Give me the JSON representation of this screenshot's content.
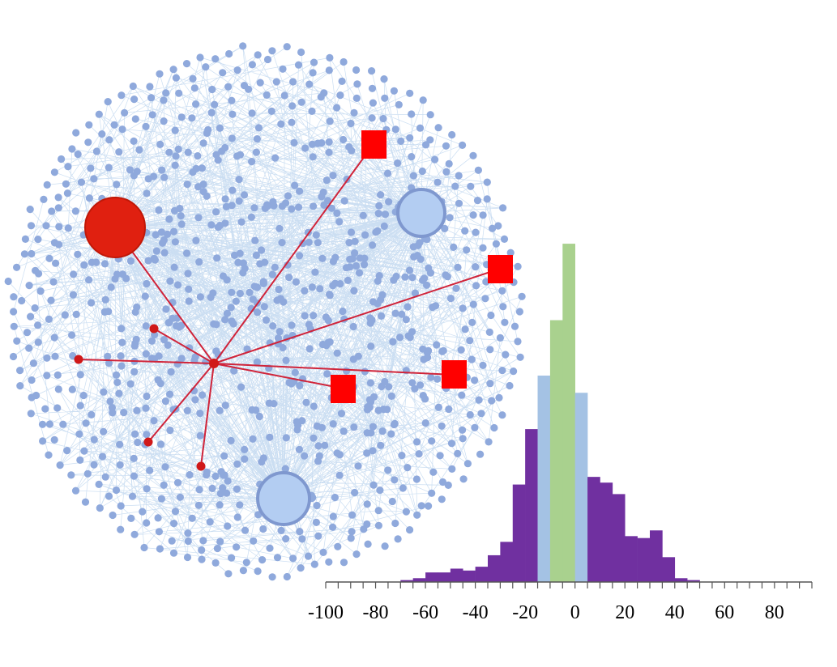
{
  "colors": {
    "background": "#ffffff",
    "network_node": "#8fa9dc",
    "network_edge": "#b9d3ee",
    "hub": "#b3cdf2",
    "hub_ring": "#7f98cf",
    "highlight": "#e02010",
    "tail_bar": "#7030a0",
    "mid_bar": "#a4c2e4",
    "center_bar": "#a9d18e",
    "axis": "#555555"
  },
  "network": {
    "description_nodes": {
      "center": "red-hub-node",
      "large_red": "large-red-node",
      "hubs": [
        "hub-node-upper-right",
        "hub-node-bottom"
      ],
      "squares": [
        "red-square-top",
        "red-square-right",
        "red-square-mid-right",
        "red-square-center"
      ],
      "small_dots": [
        "red-dot-1",
        "red-dot-2",
        "red-dot-3",
        "red-dot-4"
      ]
    }
  },
  "chart_data": {
    "type": "bar",
    "xlim": [
      -100,
      95
    ],
    "tick_labels": [
      "-100",
      "-80",
      "-60",
      "-40",
      "-20",
      "0",
      "20",
      "40",
      "60",
      "80"
    ],
    "tick_values": [
      -100,
      -80,
      -60,
      -40,
      -20,
      0,
      20,
      40,
      60,
      80
    ],
    "bin_width": 5,
    "bins": [
      {
        "x": -67.5,
        "value": 1,
        "group": "tail"
      },
      {
        "x": -62.5,
        "value": 2,
        "group": "tail"
      },
      {
        "x": -57.5,
        "value": 5,
        "group": "tail"
      },
      {
        "x": -52.5,
        "value": 5,
        "group": "tail"
      },
      {
        "x": -47.5,
        "value": 7,
        "group": "tail"
      },
      {
        "x": -42.5,
        "value": 6,
        "group": "tail"
      },
      {
        "x": -37.5,
        "value": 8,
        "group": "tail"
      },
      {
        "x": -32.5,
        "value": 14,
        "group": "tail"
      },
      {
        "x": -27.5,
        "value": 21,
        "group": "tail"
      },
      {
        "x": -22.5,
        "value": 51,
        "group": "tail"
      },
      {
        "x": -17.5,
        "value": 80,
        "group": "tail"
      },
      {
        "x": -12.5,
        "value": 108,
        "group": "mid"
      },
      {
        "x": -7.5,
        "value": 137,
        "group": "center"
      },
      {
        "x": -2.5,
        "value": 177,
        "group": "center"
      },
      {
        "x": 2.5,
        "value": 99,
        "group": "mid"
      },
      {
        "x": 7.5,
        "value": 55,
        "group": "tail"
      },
      {
        "x": 12.5,
        "value": 52,
        "group": "tail"
      },
      {
        "x": 17.5,
        "value": 46,
        "group": "tail"
      },
      {
        "x": 22.5,
        "value": 24,
        "group": "tail"
      },
      {
        "x": 27.5,
        "value": 23,
        "group": "tail"
      },
      {
        "x": 32.5,
        "value": 27,
        "group": "tail"
      },
      {
        "x": 37.5,
        "value": 13,
        "group": "tail"
      },
      {
        "x": 42.5,
        "value": 2,
        "group": "tail"
      },
      {
        "x": 47.5,
        "value": 1,
        "group": "tail"
      }
    ],
    "ylim": [
      0,
      180
    ],
    "grid": false,
    "title": "",
    "xlabel": "",
    "ylabel": ""
  }
}
